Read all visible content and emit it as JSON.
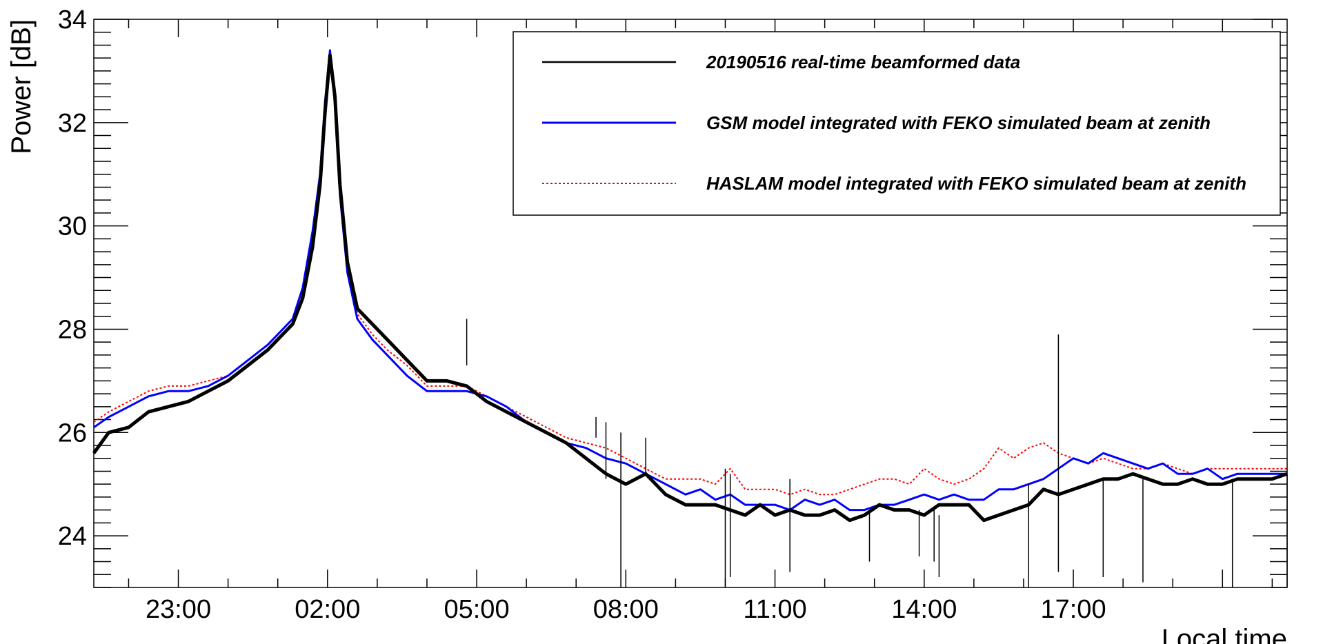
{
  "chart_data": {
    "type": "line",
    "title": "",
    "xlabel": "Local time",
    "ylabel": "Power [dB]",
    "ylim": [
      23,
      34
    ],
    "xlim": [
      21.3,
      45.3
    ],
    "x_unit": "hours since 00:00 of the first day (values above 24 fall on the next day)",
    "x_ticks": [
      {
        "value": 23,
        "label": "23:00"
      },
      {
        "value": 26,
        "label": "02:00"
      },
      {
        "value": 29,
        "label": "05:00"
      },
      {
        "value": 32,
        "label": "08:00"
      },
      {
        "value": 35,
        "label": "11:00"
      },
      {
        "value": 38,
        "label": "14:00"
      },
      {
        "value": 41,
        "label": "17:00"
      }
    ],
    "y_ticks": [
      24,
      26,
      28,
      30,
      32,
      34
    ],
    "grid": false,
    "legend_position": "top-right",
    "series": [
      {
        "name": "20190516 real-time beamformed data",
        "color": "#000000",
        "style": "solid-thick",
        "x": [
          21.3,
          21.6,
          22.0,
          22.4,
          22.8,
          23.2,
          23.6,
          24.0,
          24.4,
          24.8,
          25.0,
          25.3,
          25.5,
          25.7,
          25.85,
          25.95,
          26.05,
          26.15,
          26.25,
          26.4,
          26.6,
          26.9,
          27.2,
          27.6,
          28.0,
          28.4,
          28.8,
          29.2,
          29.6,
          30.0,
          30.4,
          30.8,
          31.2,
          31.6,
          32.0,
          32.4,
          32.8,
          33.2,
          33.5,
          33.8,
          34.1,
          34.4,
          34.7,
          35.0,
          35.3,
          35.6,
          35.9,
          36.2,
          36.5,
          36.8,
          37.1,
          37.4,
          37.7,
          38.0,
          38.3,
          38.6,
          38.9,
          39.2,
          39.5,
          39.8,
          40.1,
          40.4,
          40.7,
          41.0,
          41.3,
          41.6,
          41.9,
          42.2,
          42.5,
          42.8,
          43.1,
          43.4,
          43.7,
          44.0,
          44.3,
          44.6,
          45.0,
          45.3
        ],
        "y": [
          25.6,
          26.0,
          26.1,
          26.4,
          26.5,
          26.6,
          26.8,
          27.0,
          27.3,
          27.6,
          27.8,
          28.1,
          28.6,
          29.6,
          30.8,
          32.2,
          33.3,
          32.5,
          30.8,
          29.3,
          28.4,
          28.1,
          27.8,
          27.4,
          27.0,
          27.0,
          26.9,
          26.6,
          26.4,
          26.2,
          26.0,
          25.8,
          25.5,
          25.2,
          25.0,
          25.2,
          24.8,
          24.6,
          24.6,
          24.6,
          24.5,
          24.4,
          24.6,
          24.4,
          24.5,
          24.4,
          24.4,
          24.5,
          24.3,
          24.4,
          24.6,
          24.5,
          24.5,
          24.4,
          24.6,
          24.6,
          24.6,
          24.3,
          24.4,
          24.5,
          24.6,
          24.9,
          24.8,
          24.9,
          25.0,
          25.1,
          25.1,
          25.2,
          25.1,
          25.0,
          25.0,
          25.1,
          25.0,
          25.0,
          25.1,
          25.1,
          25.1,
          25.2
        ]
      },
      {
        "name": "GSM model integrated with FEKO simulated beam at zenith",
        "color": "#0000ff",
        "style": "solid",
        "x": [
          21.3,
          21.6,
          22.0,
          22.4,
          22.8,
          23.2,
          23.6,
          24.0,
          24.4,
          24.8,
          25.0,
          25.3,
          25.5,
          25.7,
          25.85,
          25.95,
          26.05,
          26.15,
          26.25,
          26.4,
          26.6,
          26.9,
          27.2,
          27.6,
          28.0,
          28.4,
          28.8,
          29.2,
          29.6,
          30.0,
          30.4,
          30.8,
          31.2,
          31.6,
          32.0,
          32.4,
          32.8,
          33.2,
          33.5,
          33.8,
          34.1,
          34.4,
          34.7,
          35.0,
          35.3,
          35.6,
          35.9,
          36.2,
          36.5,
          36.8,
          37.1,
          37.4,
          37.7,
          38.0,
          38.3,
          38.6,
          38.9,
          39.2,
          39.5,
          39.8,
          40.1,
          40.4,
          40.7,
          41.0,
          41.3,
          41.6,
          41.9,
          42.2,
          42.5,
          42.8,
          43.1,
          43.4,
          43.7,
          44.0,
          44.3,
          44.6,
          45.0,
          45.3
        ],
        "y": [
          26.1,
          26.3,
          26.5,
          26.7,
          26.8,
          26.8,
          26.9,
          27.1,
          27.4,
          27.7,
          27.9,
          28.2,
          28.8,
          29.9,
          31.0,
          32.4,
          33.4,
          32.5,
          30.6,
          29.1,
          28.2,
          27.8,
          27.5,
          27.1,
          26.8,
          26.8,
          26.8,
          26.7,
          26.5,
          26.2,
          26.0,
          25.8,
          25.7,
          25.5,
          25.4,
          25.2,
          25.0,
          24.8,
          24.9,
          24.7,
          24.8,
          24.6,
          24.6,
          24.6,
          24.5,
          24.7,
          24.6,
          24.7,
          24.5,
          24.5,
          24.6,
          24.6,
          24.7,
          24.8,
          24.7,
          24.8,
          24.7,
          24.7,
          24.9,
          24.9,
          25.0,
          25.1,
          25.3,
          25.5,
          25.4,
          25.6,
          25.5,
          25.4,
          25.3,
          25.4,
          25.2,
          25.2,
          25.3,
          25.1,
          25.2,
          25.2,
          25.2,
          25.2
        ]
      },
      {
        "name": "HASLAM model integrated with FEKO simulated beam at zenith",
        "color": "#ff0000",
        "style": "dotted",
        "x": [
          21.3,
          21.6,
          22.0,
          22.4,
          22.8,
          23.2,
          23.6,
          24.0,
          24.4,
          24.8,
          25.0,
          25.3,
          25.5,
          25.7,
          25.85,
          25.95,
          26.05,
          26.15,
          26.25,
          26.4,
          26.6,
          26.9,
          27.2,
          27.6,
          28.0,
          28.4,
          28.8,
          29.2,
          29.6,
          30.0,
          30.4,
          30.8,
          31.2,
          31.6,
          32.0,
          32.4,
          32.8,
          33.2,
          33.5,
          33.8,
          34.1,
          34.4,
          34.7,
          35.0,
          35.3,
          35.6,
          35.9,
          36.2,
          36.5,
          36.8,
          37.1,
          37.4,
          37.7,
          38.0,
          38.3,
          38.6,
          38.9,
          39.2,
          39.5,
          39.8,
          40.1,
          40.4,
          40.7,
          41.0,
          41.3,
          41.6,
          41.9,
          42.2,
          42.5,
          42.8,
          43.1,
          43.4,
          43.7,
          44.0,
          44.3,
          44.6,
          45.0,
          45.3
        ],
        "y": [
          26.2,
          26.4,
          26.6,
          26.8,
          26.9,
          26.9,
          27.0,
          27.1,
          27.4,
          27.7,
          27.9,
          28.2,
          28.7,
          29.8,
          30.9,
          32.2,
          33.2,
          32.3,
          30.6,
          29.1,
          28.3,
          27.9,
          27.6,
          27.3,
          26.9,
          26.9,
          26.9,
          26.7,
          26.5,
          26.3,
          26.1,
          25.9,
          25.8,
          25.7,
          25.5,
          25.3,
          25.1,
          25.1,
          25.1,
          25.0,
          25.3,
          24.9,
          24.9,
          24.9,
          24.8,
          24.9,
          24.8,
          24.8,
          24.9,
          25.0,
          25.1,
          25.1,
          25.0,
          25.3,
          25.1,
          25.0,
          25.1,
          25.3,
          25.7,
          25.5,
          25.7,
          25.8,
          25.6,
          25.5,
          25.4,
          25.5,
          25.4,
          25.3,
          25.3,
          25.4,
          25.3,
          25.2,
          25.3,
          25.3,
          25.3,
          25.3,
          25.3,
          25.3
        ]
      }
    ],
    "spikes": [
      {
        "x": 26.1,
        "top": 33.3,
        "bottom": 33.3
      },
      {
        "x": 28.8,
        "top": 28.2,
        "bottom": 27.3
      },
      {
        "x": 31.4,
        "top": 26.3,
        "bottom": 25.9
      },
      {
        "x": 31.6,
        "top": 26.2,
        "bottom": 25.1
      },
      {
        "x": 31.9,
        "top": 26.0,
        "bottom": 22.8
      },
      {
        "x": 32.4,
        "top": 25.9,
        "bottom": 25.2
      },
      {
        "x": 34.0,
        "top": 25.3,
        "bottom": 23.0
      },
      {
        "x": 34.1,
        "top": 25.2,
        "bottom": 23.2
      },
      {
        "x": 35.3,
        "top": 25.1,
        "bottom": 23.3
      },
      {
        "x": 36.9,
        "top": 24.5,
        "bottom": 23.5
      },
      {
        "x": 37.9,
        "top": 24.5,
        "bottom": 23.6
      },
      {
        "x": 38.2,
        "top": 24.5,
        "bottom": 23.5
      },
      {
        "x": 38.3,
        "top": 24.4,
        "bottom": 23.2
      },
      {
        "x": 40.1,
        "top": 25.0,
        "bottom": 23.0
      },
      {
        "x": 40.7,
        "top": 27.9,
        "bottom": 23.3
      },
      {
        "x": 41.6,
        "top": 25.1,
        "bottom": 23.2
      },
      {
        "x": 42.4,
        "top": 25.1,
        "bottom": 23.1
      },
      {
        "x": 44.2,
        "top": 25.1,
        "bottom": 23.0
      },
      {
        "x": 45.3,
        "top": 25.2,
        "bottom": 23.0
      }
    ]
  }
}
